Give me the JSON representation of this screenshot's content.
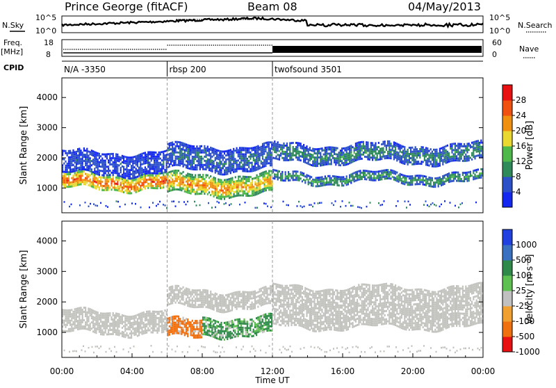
{
  "header": {
    "station": "Prince George (fitACF)",
    "beam": "Beam 08",
    "date": "04/May/2013"
  },
  "top_panel": {
    "nsky_label": "N.Sky",
    "nsearch_label": "N.Search",
    "left_ticks": [
      "10^5",
      "10^0"
    ],
    "right_ticks": [
      "10^5",
      "10^0"
    ]
  },
  "freq_panel": {
    "freq_label": "Freq.",
    "freq_unit": "[MHz]",
    "nave_label": "Nave",
    "left_ticks": [
      "18",
      "8"
    ],
    "right_ticks": [
      "60",
      "0"
    ]
  },
  "cpid": {
    "label": "CPID",
    "segments": [
      {
        "name": "N/A -3350",
        "start_hour": 0
      },
      {
        "name": "rbsp 200",
        "start_hour": 6
      },
      {
        "name": "twofsound 3501",
        "start_hour": 12
      }
    ]
  },
  "chart_data": [
    {
      "type": "heatmap",
      "title": "",
      "ylabel": "Slant Range [km]",
      "xlabel": "",
      "xlim": [
        0,
        24
      ],
      "ylim": [
        180,
        4650
      ],
      "yticks": [
        "1000",
        "2000",
        "3000",
        "4000"
      ],
      "yticks_values": [
        1000,
        2000,
        3000,
        4000
      ],
      "colorbar_label": "Power [dB]",
      "colorbar_ticks": [
        "4",
        "8",
        "12",
        "16",
        "20",
        "24",
        "28"
      ],
      "colorbar_range": [
        0,
        32
      ],
      "colorbar_colors": [
        "#1428f0",
        "#2b50c8",
        "#2f8a5a",
        "#4fb84a",
        "#e8d830",
        "#f09010",
        "#f05010",
        "#e81010"
      ],
      "echo_bands": [
        {
          "from_hour": 0,
          "to_hour": 6,
          "range_km": [
            950,
            1500
          ],
          "power_db": 26
        },
        {
          "from_hour": 0,
          "to_hour": 6,
          "range_km": [
            1500,
            2200
          ],
          "power_db": 6
        },
        {
          "from_hour": 6,
          "to_hour": 9.5,
          "range_km": [
            800,
            1450
          ],
          "power_db": 24
        },
        {
          "from_hour": 9.5,
          "to_hour": 12,
          "range_km": [
            800,
            1450
          ],
          "power_db": 22
        },
        {
          "from_hour": 6,
          "to_hour": 12,
          "range_km": [
            1600,
            2400
          ],
          "power_db": 8
        },
        {
          "from_hour": 12,
          "to_hour": 24,
          "range_km": [
            1200,
            1500
          ],
          "power_db": 12
        },
        {
          "from_hour": 12,
          "to_hour": 24,
          "range_km": [
            1850,
            2450
          ],
          "power_db": 10
        }
      ]
    },
    {
      "type": "heatmap",
      "title": "",
      "ylabel": "Slant Range [km]",
      "xlabel": "Time UT",
      "xlim": [
        0,
        24
      ],
      "ylim": [
        180,
        4650
      ],
      "xticks": [
        "00:00",
        "04:00",
        "08:00",
        "12:00",
        "16:00",
        "20:00",
        "00:00"
      ],
      "xticks_values": [
        0,
        4,
        8,
        12,
        16,
        20,
        24
      ],
      "yticks": [
        "1000",
        "2000",
        "3000",
        "4000"
      ],
      "yticks_values": [
        1000,
        2000,
        3000,
        4000
      ],
      "colorbar_label": "Velocity [m s⁻¹]",
      "colorbar_ticks": [
        "1000",
        "500",
        "100",
        "25",
        "-25",
        "-100",
        "-500",
        "-1000"
      ],
      "colorbar_colors": [
        "#2040e0",
        "#3a70c0",
        "#2f8a4a",
        "#5ec050",
        "#c0c0c0",
        "#f0a030",
        "#f07010",
        "#e81010"
      ],
      "echo_bands": [
        {
          "from_hour": 0,
          "to_hour": 6,
          "range_km": [
            950,
            1700
          ],
          "velocity": "ground-scatter"
        },
        {
          "from_hour": 6,
          "to_hour": 8,
          "range_km": [
            800,
            1400
          ],
          "velocity": -500
        },
        {
          "from_hour": 8,
          "to_hour": 12,
          "range_km": [
            900,
            1500
          ],
          "velocity": 100
        },
        {
          "from_hour": 6,
          "to_hour": 12,
          "range_km": [
            1800,
            2400
          ],
          "velocity": "ground-scatter"
        },
        {
          "from_hour": 12,
          "to_hour": 24,
          "range_km": [
            1150,
            2500
          ],
          "velocity": "ground-scatter"
        }
      ]
    }
  ]
}
